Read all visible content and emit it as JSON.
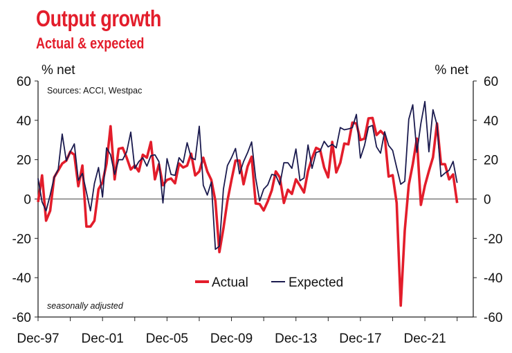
{
  "chart_data": {
    "type": "line",
    "title": "Output growth",
    "subtitle": "Actual & expected",
    "ylabel_left": "% net",
    "ylabel_right": "% net",
    "source_note": "Sources: ACCI, Westpac",
    "footnote": "seasonally adjusted",
    "ylim": [
      -60,
      60
    ],
    "yticks": [
      60,
      40,
      20,
      0,
      -20,
      -40,
      -60
    ],
    "xtick_labels": [
      "Dec-97",
      "Dec-01",
      "Dec-05",
      "Dec-09",
      "Dec-13",
      "Dec-17",
      "Dec-21"
    ],
    "xlim": [
      "Dec-97",
      "Dec-24"
    ],
    "grid": false,
    "legend_position": "bottom-center",
    "x": [
      "Dec-97",
      "Mar-98",
      "Jun-98",
      "Sep-98",
      "Dec-98",
      "Mar-99",
      "Jun-99",
      "Sep-99",
      "Dec-99",
      "Mar-00",
      "Jun-00",
      "Sep-00",
      "Dec-00",
      "Mar-01",
      "Jun-01",
      "Sep-01",
      "Dec-01",
      "Mar-02",
      "Jun-02",
      "Sep-02",
      "Dec-02",
      "Mar-03",
      "Jun-03",
      "Sep-03",
      "Dec-03",
      "Mar-04",
      "Jun-04",
      "Sep-04",
      "Dec-04",
      "Mar-05",
      "Jun-05",
      "Sep-05",
      "Dec-05",
      "Mar-06",
      "Jun-06",
      "Sep-06",
      "Dec-06",
      "Mar-07",
      "Jun-07",
      "Sep-07",
      "Dec-07",
      "Mar-08",
      "Jun-08",
      "Sep-08",
      "Dec-08",
      "Mar-09",
      "Jun-09",
      "Sep-09",
      "Dec-09",
      "Mar-10",
      "Jun-10",
      "Sep-10",
      "Dec-10",
      "Mar-11",
      "Jun-11",
      "Sep-11",
      "Dec-11",
      "Mar-12",
      "Jun-12",
      "Sep-12",
      "Dec-12",
      "Mar-13",
      "Jun-13",
      "Sep-13",
      "Dec-13",
      "Mar-14",
      "Jun-14",
      "Sep-14",
      "Dec-14",
      "Mar-15",
      "Jun-15",
      "Sep-15",
      "Dec-15",
      "Mar-16",
      "Jun-16",
      "Sep-16",
      "Dec-16",
      "Mar-17",
      "Jun-17",
      "Sep-17",
      "Dec-17",
      "Mar-18",
      "Jun-18",
      "Sep-18",
      "Dec-18",
      "Mar-19",
      "Jun-19",
      "Sep-19",
      "Dec-19",
      "Mar-20",
      "Jun-20",
      "Sep-20",
      "Dec-20",
      "Mar-21",
      "Jun-21",
      "Sep-21",
      "Dec-21",
      "Mar-22",
      "Jun-22",
      "Sep-22",
      "Dec-22",
      "Mar-23",
      "Jun-23",
      "Sep-23",
      "Dec-23"
    ],
    "series": [
      {
        "name": "Actual",
        "color": "#e31d2b",
        "values": [
          -1.5,
          12,
          -11,
          -6,
          11,
          14.5,
          18,
          19.5,
          24,
          22.5,
          6.5,
          17,
          -14,
          -14,
          -11,
          5,
          8.5,
          18,
          37,
          10,
          25.5,
          26,
          21,
          15,
          17,
          14,
          22.5,
          21,
          29,
          10,
          17.7,
          7,
          9.7,
          10.4,
          8,
          18,
          16,
          17,
          23,
          12,
          14,
          21,
          14,
          9.7,
          -1,
          -27,
          -15,
          -1,
          9.7,
          19.5,
          19.5,
          7.5,
          16.6,
          21.5,
          -2.3,
          -2.6,
          -5.8,
          -1.2,
          4.4,
          14,
          11,
          -2,
          4.7,
          2.6,
          10,
          6.8,
          3.3,
          14.2,
          20.8,
          26,
          25,
          16,
          11,
          29,
          13.5,
          18.4,
          28.2,
          27.8,
          38.8,
          38.4,
          30,
          30.7,
          41,
          41.2,
          32.5,
          34.6,
          32.5,
          11.4,
          12.1,
          -2,
          -54.2,
          -16,
          7.2,
          17.7,
          30.7,
          -3,
          6.8,
          14.2,
          21.2,
          38.4,
          17.7,
          17.7,
          10,
          12.5,
          -2
        ]
      },
      {
        "name": "Expected",
        "color": "#1a1a4e",
        "values": [
          10.5,
          -1.5,
          -6,
          2,
          11,
          15,
          33,
          19.5,
          24,
          28,
          9.5,
          13,
          3.5,
          -6,
          8,
          16,
          1,
          26,
          22.5,
          12.5,
          20,
          20,
          24,
          34,
          15.5,
          19,
          21,
          16.7,
          22,
          22.5,
          19,
          -2,
          20.5,
          12.5,
          12,
          21,
          18.4,
          28.6,
          21,
          20,
          37,
          7,
          2,
          8.6,
          -25.6,
          -24,
          5,
          17,
          21,
          25.7,
          12.8,
          19,
          23.6,
          29,
          10.7,
          -1,
          5,
          7.2,
          12.5,
          12,
          7.2,
          18.4,
          18.4,
          15.6,
          25.4,
          9.3,
          10.7,
          27.5,
          15.6,
          23.6,
          24.3,
          29.3,
          26.5,
          27.8,
          26,
          36.3,
          35.2,
          35.6,
          36.3,
          43,
          20.8,
          27.2,
          36.6,
          37.4,
          26.5,
          23.3,
          34.2,
          27.2,
          24.7,
          16,
          7.5,
          9,
          40.5,
          47.9,
          23.7,
          38.4,
          49.6,
          24,
          45.4,
          37.7,
          11.4,
          13.2,
          14.6,
          19.1,
          8.2
        ]
      }
    ]
  }
}
